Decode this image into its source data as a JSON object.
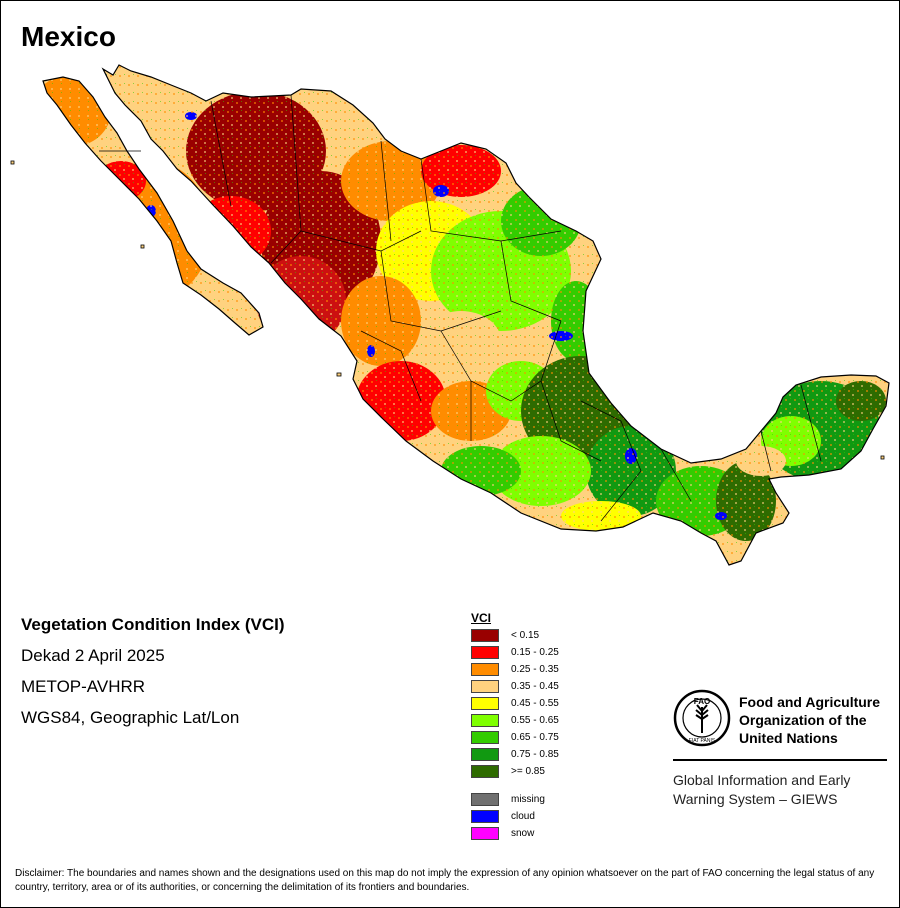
{
  "map": {
    "title": "Mexico"
  },
  "info": {
    "title": "Vegetation Condition Index (VCI)",
    "dekad": "Dekad 2 April 2025",
    "sensor": "METOP-AVHRR",
    "projection": "WGS84, Geographic Lat/Lon"
  },
  "legend": {
    "title": "VCI",
    "classes": [
      {
        "label": "< 0.15",
        "color": "#990000"
      },
      {
        "label": "0.15 - 0.25",
        "color": "#ff0000"
      },
      {
        "label": "0.25 - 0.35",
        "color": "#ff8c00"
      },
      {
        "label": "0.35 - 0.45",
        "color": "#ffd27f"
      },
      {
        "label": "0.45 - 0.55",
        "color": "#ffff00"
      },
      {
        "label": "0.55 - 0.65",
        "color": "#7fff00"
      },
      {
        "label": "0.65 - 0.75",
        "color": "#33cc00"
      },
      {
        "label": "0.75 - 0.85",
        "color": "#119911"
      },
      {
        "label": ">= 0.85",
        "color": "#2e6b00"
      }
    ],
    "extra": [
      {
        "label": "missing",
        "color": "#707070"
      },
      {
        "label": "cloud",
        "color": "#0000ff"
      },
      {
        "label": "snow",
        "color": "#ff00ff"
      }
    ]
  },
  "fao": {
    "logo_text": "FAO",
    "logo_motto": "FIAT PANIS",
    "name": "Food and Agriculture Organization of the United Nations",
    "system": "Global Information and Early Warning System – GIEWS"
  },
  "disclaimer": "Disclaimer: The boundaries and names shown and the designations used on this map do not imply the expression of any opinion whatsoever on the part of FAO concerning the legal status of any country, territory, area or of its authorities, or concerning the delimitation of its frontiers and boundaries."
}
